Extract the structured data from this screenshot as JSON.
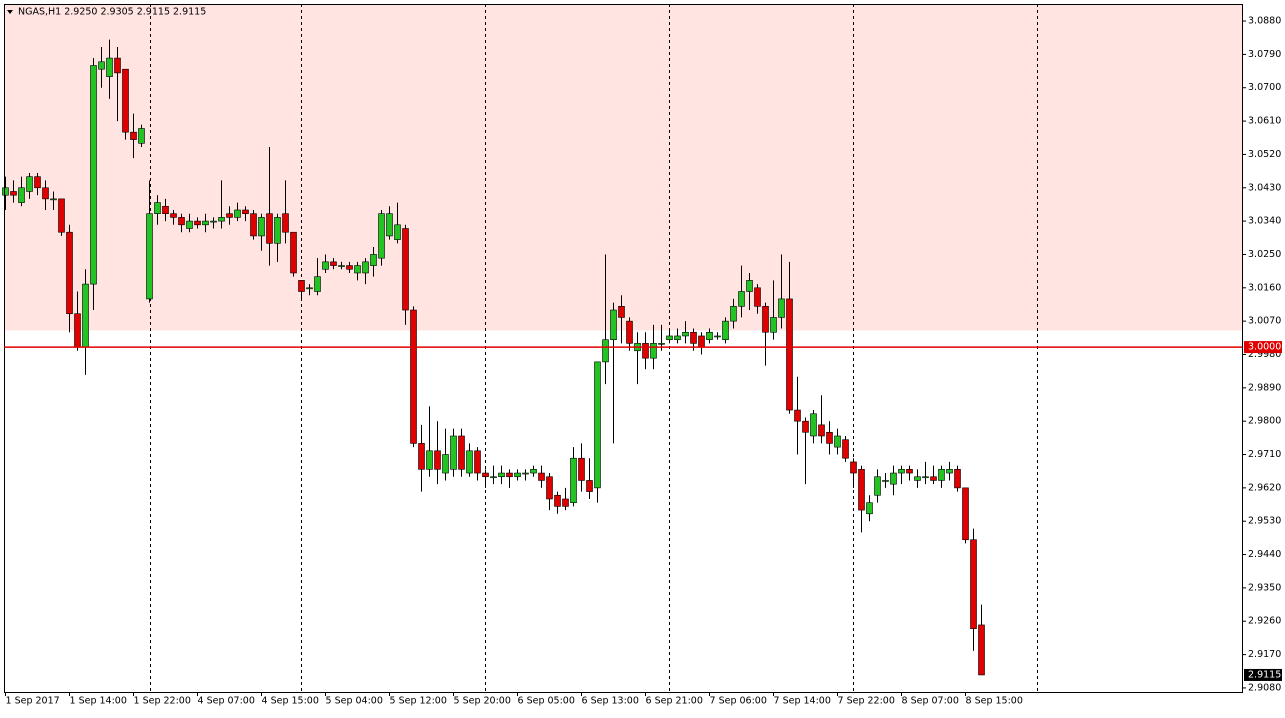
{
  "chart_data": {
    "type": "candlestick",
    "title": "NGAS,H1  2.9250 2.9305 2.9115 2.9115",
    "categories": [
      "1 Sep 2017",
      null,
      null,
      null,
      null,
      null,
      null,
      null,
      "1 Sep 14:00",
      null,
      null,
      null,
      null,
      null,
      null,
      null,
      "1 Sep 22:00",
      null,
      null,
      null,
      null,
      null,
      null,
      null,
      "4 Sep 07:00",
      null,
      null,
      null,
      null,
      null,
      null,
      null,
      "4 Sep 15:00",
      null,
      null,
      null,
      null,
      null,
      null,
      null,
      "5 Sep 04:00",
      null,
      null,
      null,
      null,
      null,
      null,
      null,
      "5 Sep 12:00",
      null,
      null,
      null,
      null,
      null,
      null,
      null,
      "5 Sep 20:00",
      null,
      null,
      null,
      null,
      null,
      null,
      null,
      "6 Sep 05:00",
      null,
      null,
      null,
      null,
      null,
      null,
      null,
      "6 Sep 13:00",
      null,
      null,
      null,
      null,
      null,
      null,
      null,
      "6 Sep 21:00",
      null,
      null,
      null,
      null,
      null,
      null,
      null,
      "7 Sep 06:00",
      null,
      null,
      null,
      null,
      null,
      null,
      null,
      "7 Sep 14:00",
      null,
      null,
      null,
      null,
      null,
      null,
      null,
      "7 Sep 22:00",
      null,
      null,
      null,
      null,
      null,
      null,
      null,
      "8 Sep 07:00",
      null,
      null,
      null,
      null,
      null,
      null,
      null,
      "8 Sep 15:00",
      null,
      null
    ],
    "open": [
      3.041,
      3.042,
      3.039,
      3.042,
      3.046,
      3.043,
      3.04,
      3.04,
      3.031,
      3.009,
      3.0,
      3.017,
      3.075,
      3.073,
      3.078,
      3.075,
      3.058,
      3.055,
      3.013,
      3.036,
      3.038,
      3.036,
      3.035,
      3.032,
      3.034,
      3.033,
      3.034,
      3.034,
      3.036,
      3.035,
      3.037,
      3.036,
      3.03,
      3.036,
      3.028,
      3.036,
      3.031,
      3.018,
      3.016,
      3.015,
      3.021,
      3.023,
      3.022,
      3.022,
      3.02,
      3.02,
      3.022,
      3.024,
      3.03,
      3.029,
      3.032,
      3.01,
      2.974,
      2.967,
      2.972,
      2.966,
      2.967,
      2.976,
      2.966,
      2.972,
      2.966,
      2.965,
      2.965,
      2.966,
      2.965,
      2.966,
      2.966,
      2.966,
      2.965,
      2.96,
      2.959,
      2.958,
      2.97,
      2.964,
      2.962,
      2.996,
      3.002,
      3.011,
      3.007,
      2.999,
      3.001,
      2.997,
      3.001,
      3.002,
      3.002,
      3.003,
      3.004,
      3.003,
      3.002,
      3.003,
      3.002,
      3.007,
      3.011,
      3.015,
      3.016,
      3.011,
      3.004,
      3.008,
      3.013,
      2.983,
      2.98,
      2.976,
      2.979,
      2.977,
      2.973,
      2.975,
      2.969,
      2.967,
      2.955,
      2.96,
      2.964,
      2.963,
      2.966,
      2.967,
      2.964,
      2.965,
      2.965,
      2.964,
      2.966,
      2.967,
      2.962,
      2.948,
      2.925
    ],
    "high": [
      3.046,
      3.045,
      3.046,
      3.047,
      3.047,
      3.045,
      3.042,
      3.04,
      3.033,
      3.015,
      3.021,
      3.078,
      3.081,
      3.083,
      3.081,
      3.075,
      3.063,
      3.06,
      3.045,
      3.041,
      3.04,
      3.037,
      3.036,
      3.036,
      3.035,
      3.036,
      3.035,
      3.045,
      3.038,
      3.039,
      3.038,
      3.037,
      3.036,
      3.054,
      3.036,
      3.045,
      3.031,
      3.018,
      3.017,
      3.024,
      3.025,
      3.024,
      3.023,
      3.023,
      3.023,
      3.024,
      3.027,
      3.037,
      3.038,
      3.039,
      3.033,
      3.011,
      2.979,
      2.984,
      2.98,
      2.978,
      2.978,
      2.978,
      2.974,
      2.973,
      2.967,
      2.968,
      2.968,
      2.967,
      2.967,
      2.967,
      2.968,
      2.968,
      2.966,
      2.961,
      2.962,
      2.973,
      2.974,
      2.97,
      2.996,
      3.025,
      3.012,
      3.014,
      3.008,
      3.004,
      3.004,
      3.006,
      3.006,
      3.005,
      3.005,
      3.007,
      3.005,
      3.004,
      3.005,
      3.004,
      3.008,
      3.013,
      3.022,
      3.02,
      3.017,
      3.012,
      3.018,
      3.025,
      3.023,
      2.992,
      2.981,
      2.983,
      2.987,
      2.98,
      2.978,
      2.976,
      2.97,
      2.968,
      2.96,
      2.967,
      2.966,
      2.968,
      2.968,
      2.968,
      2.967,
      2.969,
      2.968,
      2.968,
      2.969,
      2.968,
      2.962,
      2.951,
      2.9305
    ],
    "low": [
      3.037,
      3.039,
      3.038,
      3.04,
      3.041,
      3.037,
      3.037,
      3.03,
      3.004,
      2.999,
      2.9925,
      3.01,
      3.07,
      3.067,
      3.061,
      3.056,
      3.051,
      3.054,
      3.012,
      3.033,
      3.034,
      3.033,
      3.031,
      3.031,
      3.032,
      3.031,
      3.032,
      3.032,
      3.033,
      3.034,
      3.034,
      3.029,
      3.026,
      3.022,
      3.023,
      3.028,
      3.019,
      3.013,
      3.014,
      3.014,
      3.02,
      3.021,
      3.021,
      3.02,
      3.018,
      3.017,
      3.019,
      3.022,
      3.029,
      3.028,
      3.006,
      2.973,
      2.961,
      2.965,
      2.963,
      2.964,
      2.965,
      2.965,
      2.965,
      2.964,
      2.962,
      2.963,
      2.963,
      2.962,
      2.964,
      2.964,
      2.965,
      2.962,
      2.956,
      2.955,
      2.956,
      2.957,
      2.961,
      2.959,
      2.958,
      2.99,
      2.974,
      3.001,
      2.999,
      2.99,
      2.994,
      2.994,
      2.999,
      3.001,
      3.001,
      3.001,
      2.999,
      2.998,
      3.001,
      3.002,
      3.001,
      3.005,
      3.008,
      3.01,
      3.009,
      2.995,
      3.002,
      3.005,
      2.982,
      2.971,
      2.963,
      2.974,
      2.974,
      2.971,
      2.971,
      2.969,
      2.962,
      2.95,
      2.953,
      2.958,
      2.962,
      2.96,
      2.963,
      2.964,
      2.962,
      2.963,
      2.963,
      2.962,
      2.964,
      2.961,
      2.947,
      2.918,
      2.9115
    ],
    "close": [
      3.043,
      3.041,
      3.043,
      3.046,
      3.043,
      3.04,
      3.04,
      3.031,
      3.009,
      3.0,
      3.017,
      3.076,
      3.077,
      3.078,
      3.074,
      3.058,
      3.056,
      3.059,
      3.036,
      3.039,
      3.036,
      3.035,
      3.033,
      3.034,
      3.033,
      3.034,
      3.034,
      3.035,
      3.035,
      3.037,
      3.036,
      3.03,
      3.035,
      3.028,
      3.035,
      3.031,
      3.02,
      3.015,
      3.016,
      3.019,
      3.023,
      3.022,
      3.022,
      3.021,
      3.022,
      3.023,
      3.025,
      3.036,
      3.036,
      3.033,
      3.01,
      2.974,
      2.967,
      2.972,
      2.967,
      2.971,
      2.976,
      2.967,
      2.972,
      2.966,
      2.965,
      2.965,
      2.966,
      2.965,
      2.966,
      2.966,
      2.967,
      2.964,
      2.959,
      2.957,
      2.957,
      2.97,
      2.964,
      2.961,
      2.996,
      3.002,
      3.01,
      3.008,
      3.001,
      3.001,
      2.997,
      3.001,
      3.001,
      3.003,
      3.003,
      3.004,
      3.001,
      3.0,
      3.004,
      3.003,
      3.007,
      3.011,
      3.015,
      3.018,
      3.011,
      3.004,
      3.008,
      3.013,
      2.983,
      2.98,
      2.977,
      2.982,
      2.976,
      2.974,
      2.976,
      2.97,
      2.966,
      2.956,
      2.958,
      2.965,
      2.964,
      2.966,
      2.967,
      2.966,
      2.965,
      2.965,
      2.964,
      2.967,
      2.967,
      2.962,
      2.948,
      2.924,
      2.9115
    ],
    "up_color": "#22c322",
    "down_color": "#e00000",
    "ylim": [
      2.9069,
      3.0926
    ],
    "yticks": [
      {
        "value": 3.088,
        "label": "3.0880"
      },
      {
        "value": 3.079,
        "label": "3.0790"
      },
      {
        "value": 3.07,
        "label": "3.0700"
      },
      {
        "value": 3.061,
        "label": "3.0610"
      },
      {
        "value": 3.052,
        "label": "3.0520"
      },
      {
        "value": 3.043,
        "label": "3.0430"
      },
      {
        "value": 3.034,
        "label": "3.0340"
      },
      {
        "value": 3.025,
        "label": "3.0250"
      },
      {
        "value": 3.016,
        "label": "3.0160"
      },
      {
        "value": 3.007,
        "label": "3.0070"
      },
      {
        "value": 2.998,
        "label": "2.9980"
      },
      {
        "value": 2.989,
        "label": "2.9890"
      },
      {
        "value": 2.98,
        "label": "2.9800"
      },
      {
        "value": 2.971,
        "label": "2.9710"
      },
      {
        "value": 2.962,
        "label": "2.9620"
      },
      {
        "value": 2.953,
        "label": "2.9530"
      },
      {
        "value": 2.944,
        "label": "2.9440"
      },
      {
        "value": 2.935,
        "label": "2.9350"
      },
      {
        "value": 2.926,
        "label": "2.9260"
      },
      {
        "value": 2.917,
        "label": "2.9170"
      },
      {
        "value": 2.908,
        "label": "2.9080"
      }
    ],
    "zone": {
      "from": 3.0045,
      "to": 3.0926,
      "color": "#ffe4e1"
    },
    "levels": [
      {
        "value": 3,
        "label": "3.0000",
        "color": "#e00000"
      }
    ],
    "last_price": {
      "value": 2.9115,
      "label": "2.9115"
    }
  }
}
